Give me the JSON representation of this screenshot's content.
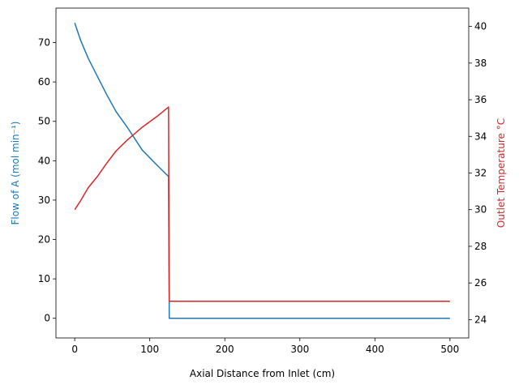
{
  "chart_data": {
    "type": "line",
    "title": "",
    "xlabel": "Axial Distance from Inlet (cm)",
    "ylabel_left": "Flow of A (mol min⁻¹)",
    "ylabel_right": "Outlet Temperature °C",
    "xlim": [
      -25,
      525
    ],
    "ylim_left": [
      -5,
      78.75
    ],
    "ylim_right": [
      23,
      41
    ],
    "xticks": [
      0,
      100,
      200,
      300,
      400,
      500
    ],
    "yticks_left": [
      0,
      10,
      20,
      30,
      40,
      50,
      60,
      70
    ],
    "yticks_right": [
      24,
      26,
      28,
      30,
      32,
      34,
      36,
      38,
      40
    ],
    "grid": false,
    "series": [
      {
        "axis": "left",
        "color": "#1f77b4",
        "x": [
          0,
          8,
          18,
          30,
          42,
          55,
          70,
          90,
          110,
          125,
          125.01,
          126,
          500
        ],
        "y": [
          75,
          70.5,
          66,
          61.5,
          57,
          52.5,
          48.5,
          42.7,
          38.8,
          36,
          36,
          0,
          0
        ]
      },
      {
        "axis": "right",
        "color": "#d62728",
        "x": [
          0,
          8,
          18,
          30,
          42,
          55,
          70,
          90,
          110,
          125,
          125.01,
          126,
          500
        ],
        "y": [
          30.0,
          30.5,
          31.2,
          31.8,
          32.5,
          33.2,
          33.8,
          34.5,
          35.1,
          35.6,
          35.6,
          25.0,
          25.0
        ]
      }
    ]
  }
}
